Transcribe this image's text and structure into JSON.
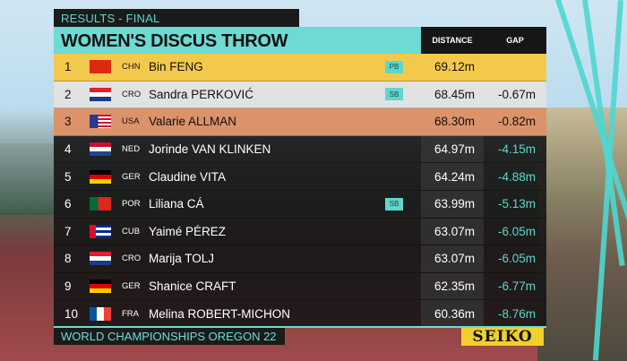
{
  "header": {
    "tag": "RESULTS - FINAL",
    "title": "WOMEN'S DISCUS THROW",
    "col_distance": "DISTANCE",
    "col_gap": "GAP"
  },
  "colors": {
    "accent": "#6edbd3",
    "gold": "#f3c94c",
    "silver": "#e2e2e2",
    "bronze": "#dc926a"
  },
  "results": [
    {
      "rank": "1",
      "flag": "china-flag",
      "country": "CHN",
      "name": "Bin FENG",
      "badge": "PB",
      "distance": "69.12m",
      "gap": ""
    },
    {
      "rank": "2",
      "flag": "croatia-flag",
      "country": "CRO",
      "name": "Sandra PERKOVIĆ",
      "badge": "SB",
      "distance": "68.45m",
      "gap": "-0.67m"
    },
    {
      "rank": "3",
      "flag": "usa-flag",
      "country": "USA",
      "name": "Valarie ALLMAN",
      "badge": "",
      "distance": "68.30m",
      "gap": "-0.82m"
    },
    {
      "rank": "4",
      "flag": "netherlands-flag",
      "country": "NED",
      "name": "Jorinde VAN KLINKEN",
      "badge": "",
      "distance": "64.97m",
      "gap": "-4.15m"
    },
    {
      "rank": "5",
      "flag": "germany-flag",
      "country": "GER",
      "name": "Claudine VITA",
      "badge": "",
      "distance": "64.24m",
      "gap": "-4.88m"
    },
    {
      "rank": "6",
      "flag": "portugal-flag",
      "country": "POR",
      "name": "Liliana CÁ",
      "badge": "SB",
      "distance": "63.99m",
      "gap": "-5.13m"
    },
    {
      "rank": "7",
      "flag": "cuba-flag",
      "country": "CUB",
      "name": "Yaimé PÉREZ",
      "badge": "",
      "distance": "63.07m",
      "gap": "-6.05m"
    },
    {
      "rank": "8",
      "flag": "croatia-flag",
      "country": "CRO",
      "name": "Marija TOLJ",
      "badge": "",
      "distance": "63.07m",
      "gap": "-6.05m"
    },
    {
      "rank": "9",
      "flag": "germany-flag",
      "country": "GER",
      "name": "Shanice CRAFT",
      "badge": "",
      "distance": "62.35m",
      "gap": "-6.77m"
    },
    {
      "rank": "10",
      "flag": "france-flag",
      "country": "FRA",
      "name": "Melina ROBERT-MICHON",
      "badge": "",
      "distance": "60.36m",
      "gap": "-8.76m"
    }
  ],
  "footer": {
    "event": "WORLD CHAMPIONSHIPS OREGON 22",
    "sponsor": "SEIKO"
  }
}
